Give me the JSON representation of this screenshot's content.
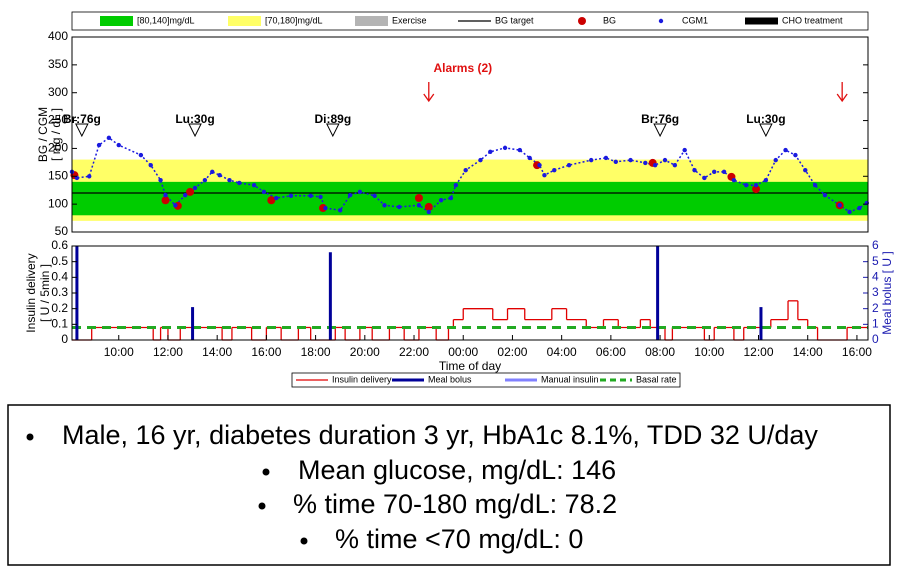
{
  "chart_data": [
    {
      "type": "scatter",
      "ylabel": [
        "BG / CGM",
        "[ mg / dL ]"
      ],
      "xlim": [
        8.1,
        40.45
      ],
      "ylim": [
        50,
        400
      ],
      "yticks": [
        50,
        100,
        150,
        200,
        250,
        300,
        350,
        400
      ],
      "bands": [
        {
          "name": "[80,140]mg/dL",
          "range": [
            80,
            140
          ],
          "color": "#00cc00"
        },
        {
          "name": "[70,180]mg/dL",
          "range": [
            70,
            180
          ],
          "color": "#ffff66"
        }
      ],
      "target": {
        "name": "BG target",
        "value": 120,
        "color": "#000000"
      },
      "series": [
        {
          "name": "Exercise",
          "color": "#b4b4b4",
          "mark": "patch",
          "x": [],
          "values": []
        },
        {
          "name": "BG",
          "color": "#cc0000",
          "mark": "dot",
          "x": [
            8.2,
            11.9,
            12.4,
            12.9,
            16.2,
            18.3,
            22.2,
            22.6,
            27.0,
            31.7,
            34.9,
            35.9,
            39.3
          ],
          "values": [
            152,
            107,
            97,
            122,
            107,
            93,
            111,
            95,
            170,
            174,
            149,
            127,
            98
          ]
        },
        {
          "name": "CGM1",
          "color": "#1a1adf",
          "mark": "small-dot",
          "x": [
            8.1,
            8.3,
            8.8,
            9.2,
            9.6,
            10.0,
            10.9,
            11.3,
            11.7,
            11.9,
            12.3,
            12.7,
            13.1,
            13.5,
            13.8,
            14.1,
            14.5,
            14.9,
            15.5,
            15.9,
            16.4,
            17.0,
            17.8,
            18.2,
            18.4,
            19.0,
            19.4,
            19.8,
            20.4,
            20.8,
            21.4,
            22.2,
            22.6,
            23.1,
            23.5,
            23.7,
            24.1,
            24.7,
            25.1,
            25.7,
            26.3,
            26.7,
            27.1,
            27.3,
            27.7,
            28.3,
            29.2,
            29.8,
            30.2,
            30.8,
            31.4,
            31.8,
            32.2,
            32.6,
            33.0,
            33.4,
            33.8,
            34.2,
            34.6,
            35.0,
            35.5,
            35.9,
            36.3,
            36.7,
            37.1,
            37.5,
            37.9,
            38.3,
            38.7,
            39.3,
            39.7,
            40.1,
            40.4
          ],
          "values": [
            158,
            147,
            150,
            206,
            219,
            206,
            188,
            170,
            143,
            116,
            98,
            116,
            129,
            143,
            158,
            152,
            143,
            138,
            134,
            122,
            111,
            115,
            115,
            113,
            93,
            89,
            116,
            122,
            115,
            98,
            95,
            98,
            86,
            107,
            111,
            134,
            161,
            179,
            194,
            201,
            197,
            183,
            170,
            152,
            161,
            170,
            179,
            183,
            176,
            179,
            174,
            170,
            179,
            170,
            197,
            161,
            147,
            158,
            158,
            143,
            134,
            134,
            143,
            179,
            197,
            188,
            161,
            134,
            116,
            98,
            86,
            93,
            102
          ]
        },
        {
          "name": "CHO treatment",
          "color": "#000000",
          "mark": "thick-line",
          "x": [],
          "values": []
        }
      ],
      "annotations": [
        {
          "text": "Br:76g",
          "x": 8.5
        },
        {
          "text": "Lu:30g",
          "x": 13.1
        },
        {
          "text": "Di:89g",
          "x": 18.7
        },
        {
          "text": "Br:76g",
          "x": 32.0
        },
        {
          "text": "Lu:30g",
          "x": 36.3
        }
      ],
      "alarms": {
        "label": "Alarms (2)",
        "x": [
          22.6,
          39.4
        ],
        "color": "#e01010"
      }
    },
    {
      "type": "line",
      "ylabel": [
        "Insulin delivery",
        "[ U / 5min ]"
      ],
      "y2label": "Meal bolus [ U ]",
      "xlabel": "Time of day",
      "xlim": [
        8.1,
        40.45
      ],
      "xticks": [
        {
          "value": 10,
          "label": "10:00"
        },
        {
          "value": 12,
          "label": "12:00"
        },
        {
          "value": 14,
          "label": "14:00"
        },
        {
          "value": 16,
          "label": "16:00"
        },
        {
          "value": 18,
          "label": "18:00"
        },
        {
          "value": 20,
          "label": "20:00"
        },
        {
          "value": 22,
          "label": "22:00"
        },
        {
          "value": 24,
          "label": "00:00"
        },
        {
          "value": 26,
          "label": "02:00"
        },
        {
          "value": 28,
          "label": "04:00"
        },
        {
          "value": 30,
          "label": "06:00"
        },
        {
          "value": 32,
          "label": "08:00"
        },
        {
          "value": 34,
          "label": "10:00"
        },
        {
          "value": 36,
          "label": "12:00"
        },
        {
          "value": 38,
          "label": "14:00"
        },
        {
          "value": 40,
          "label": "16:00"
        }
      ],
      "ylim": [
        0,
        0.6
      ],
      "yticks": [
        0,
        0.1,
        0.2,
        0.3,
        0.4,
        0.5,
        0.6
      ],
      "y2lim": [
        0,
        6
      ],
      "y2ticks": [
        0,
        1,
        2,
        3,
        4,
        5,
        6
      ],
      "series": [
        {
          "name": "Insulin delivery",
          "color": "#e00000",
          "mark": "step",
          "x": [
            8.1,
            8.9,
            11.4,
            11.7,
            12.0,
            12.5,
            14.2,
            14.6,
            15.4,
            16.0,
            16.6,
            17.3,
            17.8,
            18.8,
            19.2,
            19.8,
            20.3,
            21.0,
            21.6,
            22.2,
            22.9,
            23.4,
            23.6,
            24.0,
            25.2,
            25.8,
            26.5,
            27.6,
            28.2,
            29.0,
            29.7,
            30.3,
            31.2,
            31.6,
            32.2,
            32.5,
            33.8,
            34.2,
            35.0,
            35.4,
            36.5,
            37.2,
            37.6,
            38.0,
            38.4,
            39.6
          ],
          "values": [
            0,
            0.08,
            0,
            0.08,
            0,
            0.08,
            0,
            0.08,
            0,
            0.08,
            0,
            0.08,
            0,
            0.08,
            0,
            0.08,
            0,
            0.08,
            0,
            0.08,
            0,
            0.08,
            0.13,
            0.2,
            0.13,
            0.2,
            0.13,
            0.2,
            0.13,
            0.08,
            0.13,
            0.08,
            0.13,
            0.08,
            0,
            0.08,
            0,
            0.08,
            0,
            0.08,
            0.13,
            0.25,
            0.13,
            0.08,
            0,
            0.08
          ]
        },
        {
          "name": "Meal bolus",
          "color": "#000099",
          "mark": "stem",
          "axis": "y2",
          "x": [
            8.3,
            13.0,
            18.6,
            31.9,
            36.1
          ],
          "values": [
            6,
            2.1,
            5.6,
            6,
            2.1
          ]
        },
        {
          "name": "Manual insulin",
          "color": "#8080ff",
          "mark": "stem",
          "axis": "y2",
          "x": [],
          "values": []
        },
        {
          "name": "Basal rate",
          "color": "#22aa22",
          "mark": "dashed",
          "x": [
            8.1,
            40.45
          ],
          "values": [
            0.08,
            0.08
          ]
        }
      ]
    }
  ],
  "summary": [
    "Male, 16 yr, diabetes duration 3 yr, HbA1c 8.1%, TDD 32 U/day",
    "Mean glucose, mg/dL: 146",
    "% time 70-180 mg/dL: 78.2",
    "% time <70 mg/dL: 0"
  ]
}
